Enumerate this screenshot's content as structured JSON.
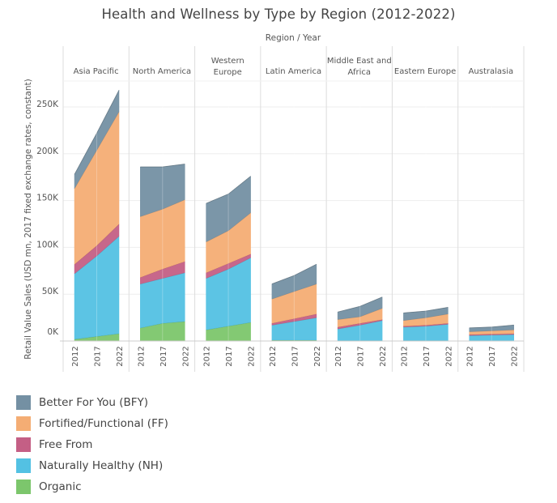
{
  "chart_data": {
    "type": "area",
    "stacked": true,
    "title": "Health and Wellness by Type by Region (2012-2022)",
    "column_header": "Region  /  Year",
    "ylabel": "Retail Value Sales (USD mn, 2017 fixed exchange rates, constant)",
    "ylim": [
      0,
      275000
    ],
    "yticks": [
      0,
      50000,
      100000,
      150000,
      200000,
      250000
    ],
    "ytick_labels": [
      "0K",
      "50K",
      "100K",
      "150K",
      "200K",
      "250K"
    ],
    "grid": true,
    "x": [
      "2012",
      "2017",
      "2022"
    ],
    "legend_position": "bottom-left",
    "series_order": [
      "Organic",
      "Naturally Healthy (NH)",
      "Free From",
      "Fortified/Functional (FF)",
      "Better For You (BFY)"
    ],
    "legend": [
      {
        "name": "Better For You (BFY)",
        "color": "#7490a3"
      },
      {
        "name": "Fortified/Functional (FF)",
        "color": "#f4ad74"
      },
      {
        "name": "Free From",
        "color": "#c45f85"
      },
      {
        "name": "Naturally Healthy (NH)",
        "color": "#53c1e3"
      },
      {
        "name": "Organic",
        "color": "#7cc66c"
      }
    ],
    "panels": [
      {
        "region": "Asia Pacific",
        "region_lines": [
          "Asia Pacific"
        ],
        "series": {
          "Organic": [
            2000,
            5000,
            8000
          ],
          "Naturally Healthy (NH)": [
            70000,
            86000,
            104000
          ],
          "Free From": [
            10000,
            11000,
            13000
          ],
          "Fortified/Functional (FF)": [
            81000,
            102000,
            120000
          ],
          "Better For You (BFY)": [
            15000,
            18000,
            23000
          ]
        }
      },
      {
        "region": "North America",
        "region_lines": [
          "North America"
        ],
        "series": {
          "Organic": [
            14000,
            19000,
            21000
          ],
          "Naturally Healthy (NH)": [
            47000,
            48000,
            52000
          ],
          "Free From": [
            7000,
            10000,
            12000
          ],
          "Fortified/Functional (FF)": [
            65000,
            64000,
            66000
          ],
          "Better For You (BFY)": [
            53000,
            45000,
            38000
          ]
        }
      },
      {
        "region": "Western Europe",
        "region_lines": [
          "Western",
          "Europe"
        ],
        "series": {
          "Organic": [
            12000,
            16000,
            20000
          ],
          "Naturally Healthy (NH)": [
            55000,
            61000,
            69000
          ],
          "Free From": [
            6000,
            6000,
            4000
          ],
          "Fortified/Functional (FF)": [
            33000,
            35000,
            44000
          ],
          "Better For You (BFY)": [
            41000,
            39000,
            39000
          ]
        }
      },
      {
        "region": "Latin America",
        "region_lines": [
          "Latin America"
        ],
        "series": {
          "Organic": [
            1000,
            1000,
            1000
          ],
          "Naturally Healthy (NH)": [
            16000,
            20000,
            24000
          ],
          "Free From": [
            2000,
            3000,
            4000
          ],
          "Fortified/Functional (FF)": [
            26000,
            29000,
            32000
          ],
          "Better For You (BFY)": [
            16000,
            17000,
            21000
          ]
        }
      },
      {
        "region": "Middle East and Africa",
        "region_lines": [
          "Middle East and",
          "Africa"
        ],
        "series": {
          "Organic": [
            500,
            500,
            500
          ],
          "Naturally Healthy (NH)": [
            12500,
            16500,
            21500
          ],
          "Free From": [
            2000,
            2000,
            1000
          ],
          "Fortified/Functional (FF)": [
            8000,
            7000,
            12000
          ],
          "Better For You (BFY)": [
            8000,
            11000,
            12000
          ]
        }
      },
      {
        "region": "Eastern Europe",
        "region_lines": [
          "Eastern Europe"
        ],
        "series": {
          "Organic": [
            500,
            500,
            500
          ],
          "Naturally Healthy (NH)": [
            14500,
            15500,
            17500
          ],
          "Free From": [
            1000,
            1000,
            1000
          ],
          "Fortified/Functional (FF)": [
            6000,
            8000,
            10000
          ],
          "Better For You (BFY)": [
            8000,
            7000,
            7000
          ]
        }
      },
      {
        "region": "Australasia",
        "region_lines": [
          "Australasia"
        ],
        "series": {
          "Organic": [
            300,
            300,
            300
          ],
          "Naturally Healthy (NH)": [
            5700,
            6200,
            6700
          ],
          "Free From": [
            1000,
            1000,
            1000
          ],
          "Fortified/Functional (FF)": [
            3000,
            3500,
            4000
          ],
          "Better For You (BFY)": [
            4000,
            4000,
            5000
          ]
        }
      }
    ]
  }
}
